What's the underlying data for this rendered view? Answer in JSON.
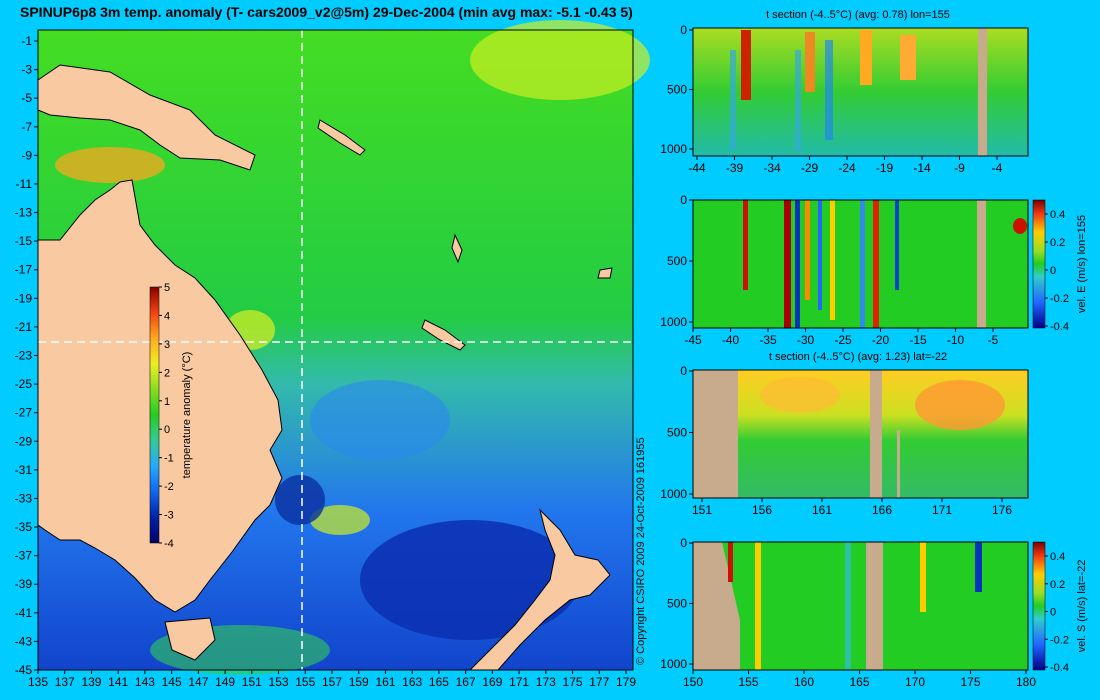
{
  "title": "SPINUP6p8 3m temp. anomaly (T- cars2009_v2@5m) 29-Dec-2004 (min avg max: -5.1 -0.43 5)",
  "copyright": "© Copyright CSIRO 2009   24-Oct-2009 161955",
  "colors": {
    "background": "#00ccff",
    "land": "#f9c9a1",
    "section_land": "#c8aa8c",
    "ocean_green": "#22cc22"
  },
  "chart_data": [
    {
      "type": "heatmap",
      "name": "map",
      "x_ticks": [
        "135",
        "137",
        "139",
        "141",
        "143",
        "145",
        "147",
        "149",
        "151",
        "153",
        "155",
        "157",
        "159",
        "161",
        "163",
        "165",
        "167",
        "169",
        "171",
        "173",
        "175",
        "177",
        "179"
      ],
      "y_ticks": [
        "-1",
        "-3",
        "-5",
        "-7",
        "-9",
        "-11",
        "-13",
        "-15",
        "-17",
        "-19",
        "-21",
        "-23",
        "-25",
        "-27",
        "-29",
        "-31",
        "-33",
        "-35",
        "-37",
        "-39",
        "-41",
        "-43",
        "-45"
      ],
      "xlim": [
        135,
        180
      ],
      "ylim": [
        -45,
        0
      ],
      "section_lon": 155,
      "section_lat": -22,
      "colorbar": {
        "label": "temperature anomaly (°C)",
        "ticks": [
          "5",
          "4",
          "3",
          "2",
          "1",
          "0",
          "-1",
          "-2",
          "-3",
          "-4"
        ],
        "range": [
          -4,
          5
        ]
      }
    },
    {
      "type": "heatmap",
      "name": "panel1",
      "title": "t section (-4..5°C) (avg: 0.78) lon=155",
      "x_ticks": [
        "-44",
        "-39",
        "-34",
        "-29",
        "-24",
        "-19",
        "-14",
        "-9",
        "-4"
      ],
      "y_ticks": [
        "0",
        "500",
        "1000"
      ]
    },
    {
      "type": "heatmap",
      "name": "panel2",
      "x_ticks": [
        "-45",
        "-40",
        "-35",
        "-30",
        "-25",
        "-20",
        "-15",
        "-10",
        "-5"
      ],
      "y_ticks": [
        "0",
        "500",
        "1000"
      ],
      "colorbar": {
        "label": "vel. E (m/s) lon=155",
        "ticks": [
          "0.4",
          "0.2",
          "0",
          "-0.2",
          "-0.4"
        ],
        "range": [
          -0.5,
          0.5
        ]
      }
    },
    {
      "type": "heatmap",
      "name": "panel3",
      "title": "t section (-4..5°C) (avg: 1.23) lat=-22",
      "x_ticks": [
        "151",
        "156",
        "161",
        "166",
        "171",
        "176"
      ],
      "y_ticks": [
        "0",
        "500",
        "1000"
      ]
    },
    {
      "type": "heatmap",
      "name": "panel4",
      "x_ticks": [
        "150",
        "155",
        "160",
        "165",
        "170",
        "175",
        "180"
      ],
      "y_ticks": [
        "0",
        "500",
        "1000"
      ],
      "colorbar": {
        "label": "vel. S (m/s) lat=-22",
        "ticks": [
          "0.4",
          "0.2",
          "0",
          "-0.2",
          "-0.4"
        ],
        "range": [
          -0.5,
          0.5
        ]
      }
    }
  ]
}
